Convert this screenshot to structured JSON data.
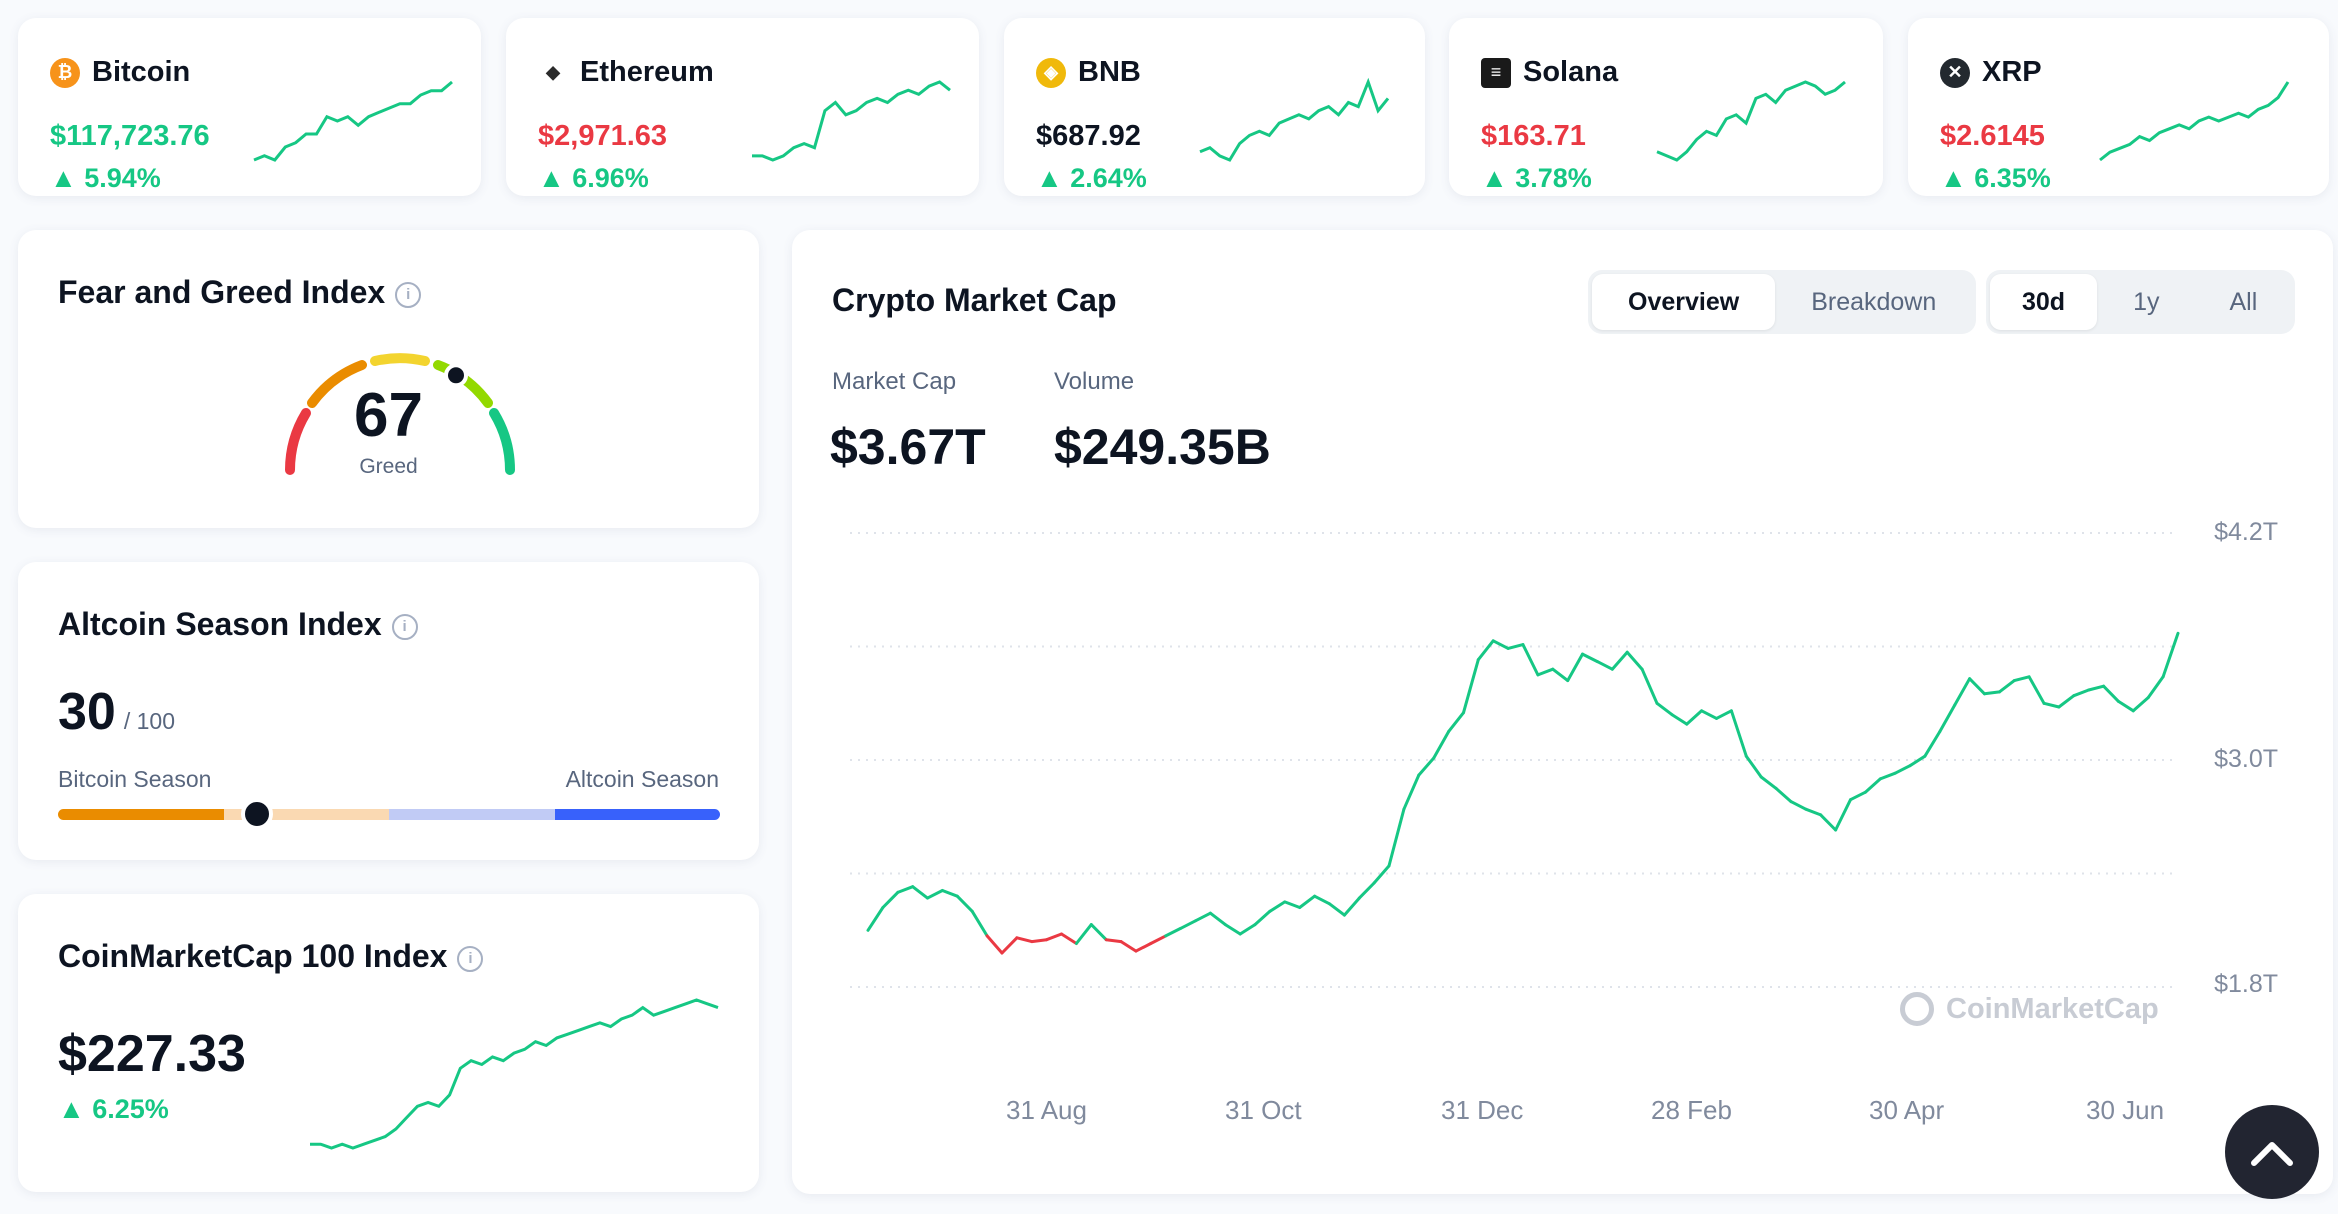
{
  "coins": [
    {
      "name": "Bitcoin",
      "price": "$117,723.76",
      "change": "5.94%",
      "price_color": "up",
      "icon": "bitcoin-icon",
      "icon_glyph": "₿",
      "icon_color": "#f7931a",
      "spark": [
        2,
        3,
        2,
        5,
        6,
        8,
        8,
        12,
        11,
        12,
        10,
        12,
        13,
        14,
        15,
        15,
        17,
        18,
        18,
        20
      ]
    },
    {
      "name": "Ethereum",
      "price": "$2,971.63",
      "change": "6.96%",
      "price_color": "down",
      "icon": "ethereum-icon",
      "icon_glyph": "◆",
      "icon_color": "#2b2b2b",
      "spark": [
        3,
        3,
        2,
        3,
        5,
        6,
        5,
        14,
        16,
        13,
        14,
        16,
        17,
        16,
        18,
        19,
        18,
        20,
        21,
        19
      ]
    },
    {
      "name": "BNB",
      "price": "$687.92",
      "change": "2.64%",
      "price_color": "dark",
      "icon": "bnb-icon",
      "icon_glyph": "◈",
      "icon_color": "#f0b90b",
      "spark": [
        4,
        5,
        3,
        2,
        6,
        8,
        9,
        8,
        11,
        12,
        13,
        12,
        14,
        15,
        13,
        16,
        15,
        21,
        14,
        17
      ]
    },
    {
      "name": "Solana",
      "price": "$163.71",
      "change": "3.78%",
      "price_color": "down",
      "icon": "solana-icon",
      "icon_glyph": "≡",
      "icon_color": "#1a1a1a",
      "spark": [
        3,
        2,
        1,
        3,
        6,
        8,
        7,
        11,
        12,
        10,
        16,
        17,
        15,
        18,
        19,
        20,
        19,
        17,
        18,
        20
      ]
    },
    {
      "name": "XRP",
      "price": "$2.6145",
      "change": "6.35%",
      "price_color": "down",
      "icon": "xrp-icon",
      "icon_glyph": "✕",
      "icon_color": "#23292f",
      "spark": [
        2,
        4,
        5,
        6,
        8,
        7,
        9,
        10,
        11,
        10,
        12,
        13,
        12,
        13,
        14,
        13,
        15,
        16,
        18,
        22
      ]
    }
  ],
  "fear_greed": {
    "title": "Fear and Greed Index",
    "value": "67",
    "label": "Greed",
    "level": 67
  },
  "altcoin": {
    "title": "Altcoin Season Index",
    "value": "30",
    "max": "/ 100",
    "left_label": "Bitcoin Season",
    "right_label": "Altcoin Season",
    "level": 30
  },
  "cmc100": {
    "title": "CoinMarketCap 100 Index",
    "value": "$227.33",
    "change": "6.25%",
    "spark": [
      2,
      2,
      1,
      2,
      1,
      2,
      3,
      4,
      6,
      9,
      12,
      13,
      12,
      15,
      22,
      24,
      23,
      25,
      24,
      26,
      27,
      29,
      28,
      30,
      31,
      32,
      33,
      34,
      33,
      35,
      36,
      38,
      36,
      37,
      38,
      39,
      40,
      39,
      38
    ]
  },
  "main": {
    "title": "Crypto Market Cap",
    "tabs": [
      "Overview",
      "Breakdown"
    ],
    "active_tab": "Overview",
    "ranges": [
      "30d",
      "1y",
      "All"
    ],
    "active_range": "30d",
    "market_cap_label": "Market Cap",
    "market_cap": "$3.67T",
    "volume_label": "Volume",
    "volume": "$249.35B",
    "watermark": "CoinMarketCap",
    "scroll_top_icon": "chevron-up-icon"
  },
  "chart_data": {
    "type": "line",
    "x_ticks": [
      "31 Aug",
      "31 Oct",
      "31 Dec",
      "28 Feb",
      "30 Apr",
      "30 Jun"
    ],
    "y_ticks": [
      "$4.2T",
      "$3.0T",
      "$1.8T"
    ],
    "ylim": [
      1.8,
      4.2
    ],
    "series": [
      {
        "values": [
          2.1,
          2.22,
          2.3,
          2.33,
          2.27,
          2.31,
          2.28,
          2.2,
          2.07,
          1.98,
          2.06,
          2.04,
          2.05,
          2.08,
          2.03,
          2.13,
          2.05,
          2.04,
          1.99,
          2.03,
          2.07,
          2.11,
          2.15,
          2.19,
          2.13,
          2.08,
          2.13,
          2.2,
          2.25,
          2.22,
          2.28,
          2.24,
          2.18,
          2.27,
          2.35,
          2.44,
          2.74,
          2.92,
          3.01,
          3.15,
          3.25,
          3.53,
          3.63,
          3.59,
          3.61,
          3.45,
          3.48,
          3.42,
          3.56,
          3.52,
          3.48,
          3.57,
          3.48,
          3.3,
          3.24,
          3.19,
          3.26,
          3.22,
          3.26,
          3.02,
          2.91,
          2.85,
          2.78,
          2.74,
          2.71,
          2.63,
          2.79,
          2.83,
          2.9,
          2.93,
          2.97,
          3.02,
          3.15,
          3.29,
          3.43,
          3.35,
          3.36,
          3.42,
          3.44,
          3.3,
          3.28,
          3.34,
          3.37,
          3.39,
          3.31,
          3.26,
          3.33,
          3.44,
          3.67
        ]
      }
    ]
  }
}
